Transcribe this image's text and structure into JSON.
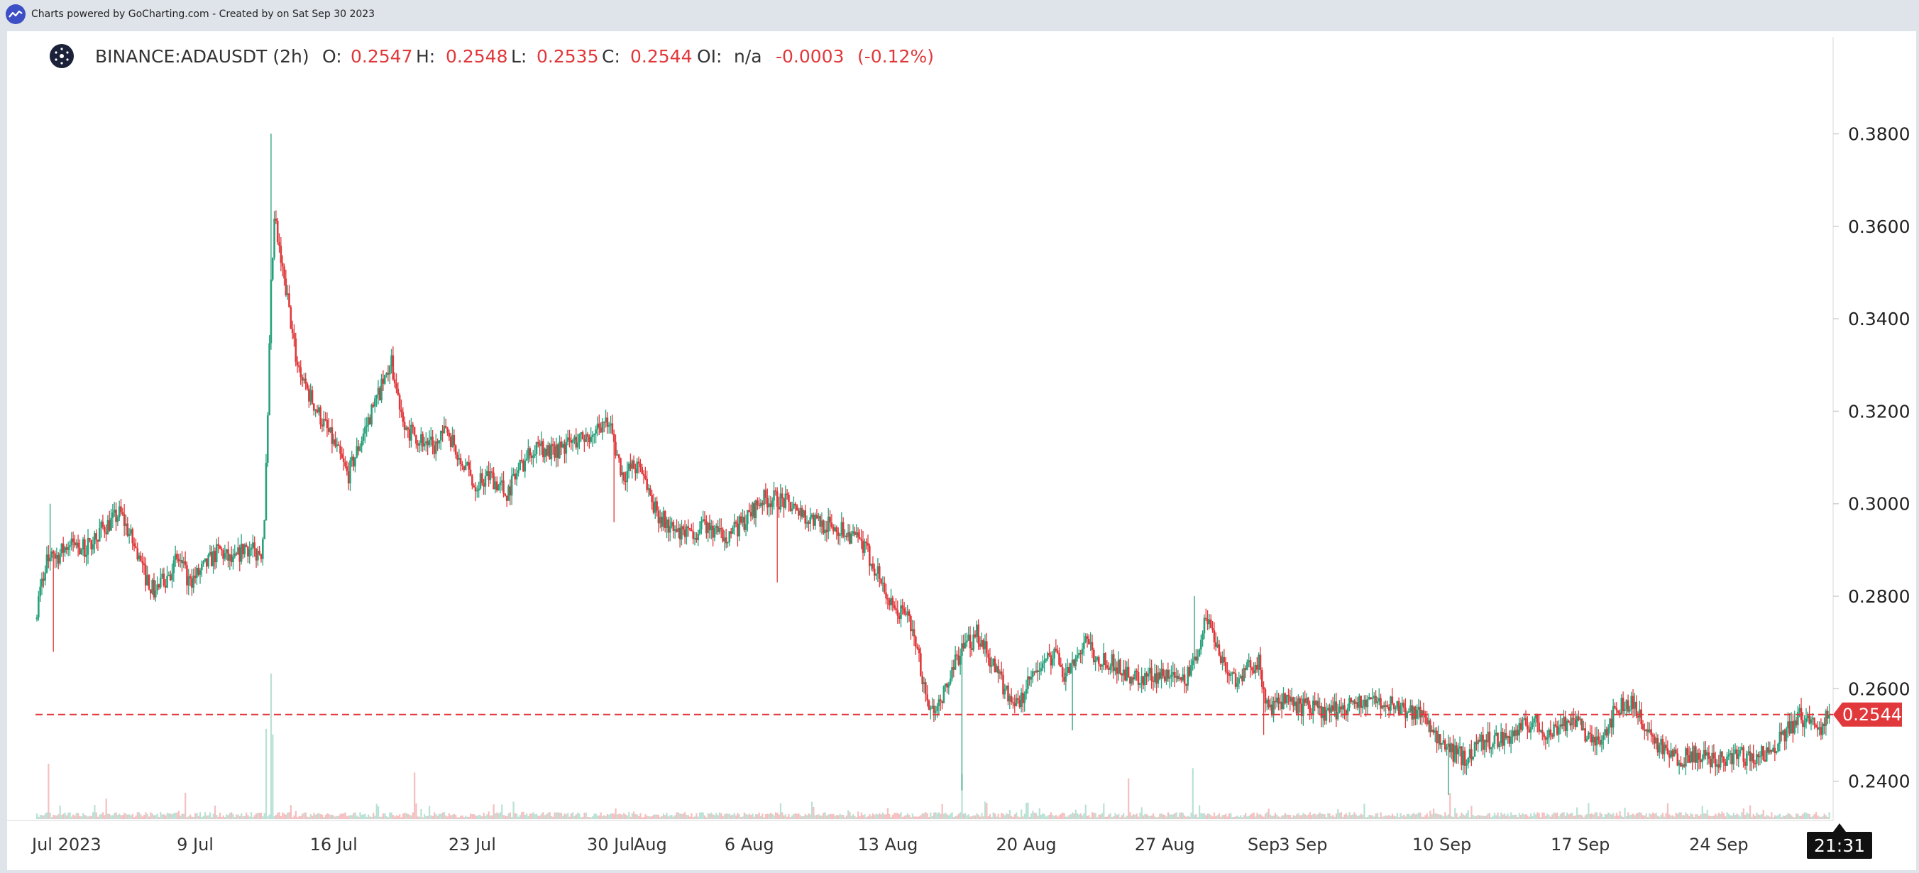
{
  "header": {
    "credit": "Charts powered by GoCharting.com - Created by  on Sat Sep 30 2023"
  },
  "legend": {
    "symbol": "BINANCE:ADAUSDT (2h)",
    "o_label": "O:",
    "o_value": "0.2547",
    "h_label": "H:",
    "h_value": "0.2548",
    "l_label": "L:",
    "l_value": "0.2535",
    "c_label": "C:",
    "c_value": "0.2544",
    "oi_label": "OI:",
    "oi_value": "n/a",
    "change": "-0.0003",
    "change_pct": "(-0.12%)"
  },
  "colors": {
    "up": "#26a17b",
    "down": "#e0383b",
    "price_line": "#e0383b",
    "label_text": "#333333",
    "time_badge": "#111111"
  },
  "chart_data": {
    "type": "candlestick",
    "symbol": "BINANCE:ADAUSDT",
    "interval": "2h",
    "y_ticks": [
      0.24,
      0.26,
      0.28,
      0.3,
      0.32,
      0.34,
      0.36,
      0.38
    ],
    "y_tick_labels": [
      "0.2400",
      "0.2600",
      "0.2800",
      "0.3000",
      "0.3200",
      "0.3400",
      "0.3600",
      "0.3800"
    ],
    "ylim": [
      0.2315,
      0.3985
    ],
    "x_ticks": [
      {
        "label": "Jul 2023",
        "day": 2.5
      },
      {
        "label": "9 Jul",
        "day": 9
      },
      {
        "label": "16 Jul",
        "day": 16
      },
      {
        "label": "23 Jul",
        "day": 23
      },
      {
        "label": "30 Jul",
        "day": 30
      },
      {
        "label": "Aug",
        "day": 32
      },
      {
        "label": "6 Aug",
        "day": 37
      },
      {
        "label": "13 Aug",
        "day": 44
      },
      {
        "label": "20 Aug",
        "day": 51
      },
      {
        "label": "27 Aug",
        "day": 58
      },
      {
        "label": "Sep",
        "day": 63
      },
      {
        "label": "3 Sep",
        "day": 65
      },
      {
        "label": "10 Sep",
        "day": 72
      },
      {
        "label": "17 Sep",
        "day": 79
      },
      {
        "label": "24 Sep",
        "day": 86
      }
    ],
    "xlim": [
      1.0,
      91.6
    ],
    "current_price": 0.2544,
    "current_price_label": "0.2544",
    "time_label": "21:31",
    "grid": false,
    "path_days": [
      1.0,
      1.5,
      2.2,
      2.8,
      3.5,
      4.2,
      4.8,
      5.3,
      5.8,
      6.5,
      7.0,
      7.6,
      8.2,
      8.8,
      9.5,
      10.3,
      11.0,
      11.6,
      12.2,
      12.45,
      12.6,
      12.75,
      12.9,
      13.1,
      13.3,
      13.7,
      14.2,
      14.8,
      15.5,
      16.2,
      16.8,
      17.4,
      18.0,
      18.5,
      19.0,
      19.4,
      19.8,
      20.5,
      21.2,
      21.8,
      22.5,
      23.2,
      24.0,
      24.8,
      25.5,
      26.3,
      27.0,
      28.0,
      29.0,
      29.7,
      30.2,
      30.7,
      31.2,
      31.7,
      32.3,
      33.0,
      33.6,
      34.3,
      35.0,
      35.6,
      36.3,
      37.0,
      37.7,
      38.5,
      39.0,
      39.8,
      40.5,
      41.3,
      42.0,
      42.8,
      43.6,
      44.4,
      45.0,
      45.6,
      46.2,
      46.8,
      47.3,
      47.6,
      47.9,
      48.2,
      48.6,
      49.3,
      50.0,
      50.7,
      51.3,
      52.0,
      52.5,
      53.0,
      53.5,
      54.0,
      54.6,
      55.3,
      56.0,
      56.7,
      57.3,
      58.0,
      58.7,
      59.2,
      59.7,
      60.2,
      60.7,
      61.3,
      61.9,
      62.4,
      62.8,
      63.3,
      64.0,
      64.8,
      65.5,
      66.2,
      67.0,
      67.7,
      68.5,
      69.2,
      70.0,
      70.8,
      71.3,
      71.8,
      72.3,
      72.8,
      73.3,
      73.8,
      74.5,
      75.2,
      76.0,
      76.7,
      77.5,
      78.2,
      79.0,
      79.7,
      80.3,
      81.0,
      81.6,
      82.2,
      82.8,
      83.4,
      84.0,
      84.7,
      85.4,
      86.2,
      87.0,
      87.7,
      88.4,
      89.0,
      89.6,
      90.2,
      90.8,
      91.3,
      91.6
    ],
    "path_prices": [
      0.275,
      0.287,
      0.289,
      0.292,
      0.29,
      0.294,
      0.296,
      0.298,
      0.293,
      0.285,
      0.281,
      0.284,
      0.288,
      0.283,
      0.286,
      0.29,
      0.287,
      0.291,
      0.289,
      0.29,
      0.299,
      0.318,
      0.345,
      0.362,
      0.355,
      0.345,
      0.331,
      0.324,
      0.318,
      0.312,
      0.306,
      0.313,
      0.32,
      0.325,
      0.33,
      0.322,
      0.316,
      0.314,
      0.312,
      0.316,
      0.31,
      0.304,
      0.306,
      0.302,
      0.308,
      0.313,
      0.311,
      0.313,
      0.315,
      0.318,
      0.314,
      0.306,
      0.308,
      0.307,
      0.299,
      0.295,
      0.293,
      0.294,
      0.295,
      0.293,
      0.294,
      0.297,
      0.301,
      0.301,
      0.3,
      0.298,
      0.296,
      0.295,
      0.294,
      0.291,
      0.285,
      0.276,
      0.277,
      0.268,
      0.253,
      0.258,
      0.262,
      0.267,
      0.268,
      0.27,
      0.272,
      0.266,
      0.26,
      0.256,
      0.262,
      0.265,
      0.268,
      0.263,
      0.265,
      0.27,
      0.267,
      0.266,
      0.264,
      0.262,
      0.263,
      0.263,
      0.264,
      0.262,
      0.268,
      0.276,
      0.27,
      0.263,
      0.262,
      0.265,
      0.266,
      0.255,
      0.257,
      0.256,
      0.256,
      0.254,
      0.256,
      0.257,
      0.258,
      0.257,
      0.256,
      0.255,
      0.254,
      0.249,
      0.247,
      0.246,
      0.245,
      0.248,
      0.249,
      0.249,
      0.251,
      0.253,
      0.25,
      0.253,
      0.252,
      0.248,
      0.251,
      0.256,
      0.257,
      0.253,
      0.249,
      0.246,
      0.245,
      0.246,
      0.245,
      0.245,
      0.246,
      0.245,
      0.246,
      0.248,
      0.251,
      0.254,
      0.253,
      0.252,
      0.2544
    ],
    "spikes": [
      {
        "day": 1.8,
        "low": 0.268
      },
      {
        "day": 1.7,
        "high": 0.3
      },
      {
        "day": 12.8,
        "high": 0.38
      },
      {
        "day": 38.4,
        "low": 0.283
      },
      {
        "day": 47.75,
        "low": 0.238
      },
      {
        "day": 53.3,
        "low": 0.251
      },
      {
        "day": 59.5,
        "high": 0.28
      },
      {
        "day": 63.0,
        "low": 0.25
      },
      {
        "day": 72.3,
        "low": 0.237
      },
      {
        "day": 30.2,
        "low": 0.296
      }
    ],
    "volume": {
      "baseline_shares": 0.03,
      "spikes": [
        {
          "day": 12.8,
          "value": 1.0
        },
        {
          "day": 12.6,
          "value": 0.62
        },
        {
          "day": 12.95,
          "value": 0.58
        },
        {
          "day": 1.6,
          "value": 0.38
        },
        {
          "day": 20.1,
          "value": 0.32
        },
        {
          "day": 47.75,
          "value": 0.31
        },
        {
          "day": 59.4,
          "value": 0.35
        },
        {
          "day": 56.2,
          "value": 0.28
        },
        {
          "day": 72.4,
          "value": 0.18
        },
        {
          "day": 8.5,
          "value": 0.18
        },
        {
          "day": 4.5,
          "value": 0.14
        }
      ]
    }
  }
}
